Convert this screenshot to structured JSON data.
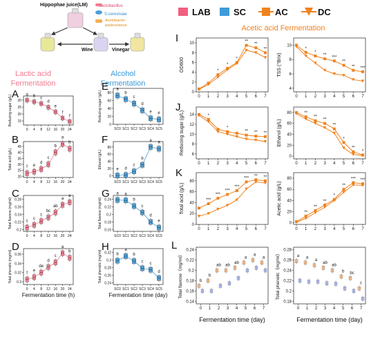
{
  "schematic": {
    "juice": "Hippophae juice(LM)",
    "lactobacillus": "Lactobacillus",
    "yeast": "S.cerevisiae",
    "acetobacter1": "Acetobacter",
    "acetobacter2": "pasteurianus",
    "wine": "Wine",
    "vinegar": "Vinegar"
  },
  "headings": {
    "lactic1": "Lactic acid",
    "lactic2": "Fermentation",
    "alcohol1": "Alcohol",
    "alcohol2": "Fermentation",
    "acetic": "Acetic acid Fermentation"
  },
  "legend": [
    {
      "label": "LAB",
      "color": "#f0607e",
      "shape": "square"
    },
    {
      "label": "SC",
      "color": "#3d9bd8",
      "shape": "square"
    },
    {
      "label": "AC",
      "color": "#f0821e",
      "shape": "square-line"
    },
    {
      "label": "DC",
      "color": "#f0821e",
      "shape": "triangle-line"
    }
  ],
  "colors": {
    "lab": "#f07b8f",
    "sc": "#4a9fd8",
    "ac": "#f0821e",
    "dc": "#f0821e",
    "lavender": "#8f9ef0",
    "orangeBox": "#f5a05a"
  },
  "xlabels": {
    "lactic": "Fermentation time (h)",
    "alcohol": "Fermentation time (day)",
    "acetic": "Fermentation time (day)",
    "acetic2": "Fermentation time (day)"
  },
  "chart_data": [
    {
      "panel": "A",
      "type": "box",
      "ylabel": "Reducing sugar (g/L)",
      "categories": [
        "0",
        "4",
        "8",
        "12",
        "16",
        "20",
        "24"
      ],
      "values": [
        30,
        28.8,
        27.5,
        24.8,
        21.5,
        17,
        14.5
      ],
      "letters": [
        "a",
        "b",
        "c",
        "d",
        "e",
        "f",
        "f"
      ],
      "yticks": [
        15,
        20,
        25,
        30
      ],
      "ylim": [
        12,
        33
      ]
    },
    {
      "panel": "B",
      "type": "box",
      "ylabel": "Total acid (g/L)",
      "categories": [
        "0",
        "4",
        "8",
        "12",
        "16",
        "20",
        "24"
      ],
      "values": [
        22.5,
        23.8,
        26,
        30,
        40,
        47,
        43
      ],
      "letters": [
        "f",
        "e",
        "d",
        "c",
        "b",
        "a",
        "b"
      ],
      "yticks": [
        20,
        25,
        30,
        35,
        40,
        45
      ],
      "ylim": [
        19,
        49
      ]
    },
    {
      "panel": "C",
      "type": "box",
      "ylabel": "Total flavone (mg/ml)",
      "categories": [
        "0",
        "4",
        "8",
        "12",
        "16",
        "20",
        "24"
      ],
      "values": [
        0.205,
        0.212,
        0.222,
        0.232,
        0.245,
        0.265,
        0.272
      ],
      "letters": [
        "c",
        "c",
        "c",
        "bc",
        "ab",
        "a",
        "a"
      ],
      "yticks": [
        0.2,
        0.22,
        0.24,
        0.26,
        0.28
      ],
      "ylim": [
        0.195,
        0.29
      ]
    },
    {
      "panel": "D",
      "type": "box",
      "ylabel": "Total phenolic (mg/ml)",
      "categories": [
        "0",
        "4",
        "8",
        "12",
        "16",
        "20",
        "24"
      ],
      "values": [
        0.305,
        0.31,
        0.32,
        0.332,
        0.342,
        0.362,
        0.352
      ],
      "letters": [
        "f",
        "e",
        "de",
        "d",
        "c",
        "a",
        "b"
      ],
      "yticks": [
        0.3,
        0.32,
        0.34,
        0.36
      ],
      "ylim": [
        0.294,
        0.372
      ]
    },
    {
      "panel": "E",
      "type": "box",
      "ylabel": "Reducing sugar (g/L)",
      "categories": [
        "SC0",
        "SC1",
        "SC2",
        "SC3",
        "SC4",
        "SC5"
      ],
      "values": [
        72,
        63,
        52,
        35,
        15,
        12
      ],
      "letters": [
        "a",
        "b",
        "c",
        "d",
        "e",
        "e"
      ],
      "yticks": [
        0,
        20,
        40,
        60,
        80
      ],
      "ylim": [
        0,
        90
      ]
    },
    {
      "panel": "F",
      "type": "box",
      "ylabel": "Ethanol (g/L)",
      "categories": [
        "SC0",
        "SC1",
        "SC2",
        "SC3",
        "SC4",
        "SC5"
      ],
      "values": [
        0.5,
        2,
        12,
        30,
        80,
        75
      ],
      "letters": [
        "e",
        "d",
        "c",
        "b",
        "a",
        "a"
      ],
      "yticks": [
        0,
        20,
        40,
        60,
        80
      ],
      "ylim": [
        -5,
        95
      ]
    },
    {
      "panel": "G",
      "type": "box",
      "ylabel": "Total flavone (mg/ml)",
      "categories": [
        "SC0",
        "SC1",
        "SC2",
        "SC3",
        "SC4",
        "SC5"
      ],
      "values": [
        0.238,
        0.237,
        0.222,
        0.205,
        0.18,
        0.165
      ],
      "letters": [
        "a",
        "a",
        "b",
        "c",
        "d",
        "e"
      ],
      "yticks": [
        0.16,
        0.18,
        0.2,
        0.22,
        0.24
      ],
      "ylim": [
        0.155,
        0.25
      ]
    },
    {
      "panel": "H",
      "type": "box",
      "ylabel": "Total phenolic (mg/ml)",
      "categories": [
        "SC0",
        "SC1",
        "SC2",
        "SC3",
        "SC4",
        "SC5"
      ],
      "values": [
        0.298,
        0.31,
        0.297,
        0.278,
        0.274,
        0.252
      ],
      "letters": [
        "b",
        "a",
        "b",
        "c",
        "c",
        "d"
      ],
      "yticks": [
        0.24,
        0.26,
        0.28,
        0.3,
        0.32
      ],
      "ylim": [
        0.235,
        0.33
      ]
    },
    {
      "panel": "I1",
      "type": "line",
      "ylabel": "OD600",
      "x": [
        0,
        1,
        2,
        3,
        4,
        5,
        6,
        7
      ],
      "series": [
        {
          "name": "AC",
          "values": [
            0.6,
            1.8,
            3.5,
            4.8,
            6,
            9.5,
            9,
            8
          ]
        },
        {
          "name": "DC",
          "values": [
            0.5,
            1.5,
            3,
            4.5,
            5.8,
            8.5,
            8,
            7
          ]
        }
      ],
      "sig": [
        "",
        "",
        "*",
        "*",
        "*",
        "**",
        "**",
        "**"
      ],
      "yticks": [
        0,
        2,
        4,
        6,
        8,
        10
      ],
      "ylim": [
        0,
        11
      ]
    },
    {
      "panel": "I2",
      "type": "line",
      "ylabel": "TSS (°Brix)",
      "x": [
        0,
        1,
        2,
        3,
        4,
        5,
        6,
        7
      ],
      "series": [
        {
          "name": "AC",
          "values": [
            10,
            9,
            8.5,
            8.1,
            7.8,
            7.2,
            6.5,
            6.3
          ]
        },
        {
          "name": "DC",
          "values": [
            9.8,
            8.5,
            7.5,
            6.5,
            6,
            5.8,
            5.2,
            5
          ]
        }
      ],
      "sig": [
        "",
        "*",
        "*",
        "**",
        "***",
        "**",
        "**",
        "***"
      ],
      "yticks": [
        4,
        6,
        8,
        10
      ],
      "ylim": [
        3.5,
        11
      ]
    },
    {
      "panel": "J1",
      "type": "line",
      "ylabel": "Reducing sugar (g/L)",
      "x": [
        0,
        1,
        2,
        3,
        4,
        5,
        6,
        7
      ],
      "series": [
        {
          "name": "AC",
          "values": [
            14,
            13,
            11,
            10.5,
            10.2,
            9.8,
            9.6,
            9.5
          ]
        },
        {
          "name": "DC",
          "values": [
            13.8,
            12.5,
            10.5,
            10,
            9.5,
            9,
            8.8,
            8.5
          ]
        }
      ],
      "sig": [
        "",
        "*",
        "",
        "*",
        "",
        "**",
        "**",
        "**"
      ],
      "yticks": [
        6,
        8,
        10,
        12,
        14
      ],
      "ylim": [
        5,
        15.5
      ]
    },
    {
      "panel": "J2",
      "type": "line",
      "ylabel": "Ethanol (g/L)",
      "x": [
        0,
        1,
        2,
        3,
        4,
        5,
        6,
        7
      ],
      "series": [
        {
          "name": "AC",
          "values": [
            80,
            72,
            65,
            60,
            50,
            25,
            8,
            2
          ]
        },
        {
          "name": "DC",
          "values": [
            78,
            68,
            60,
            52,
            42,
            15,
            3,
            1
          ]
        }
      ],
      "sig": [
        "",
        "**",
        "**",
        "**",
        "**",
        "*",
        "**",
        "*"
      ],
      "yticks": [
        0,
        20,
        40,
        60,
        80
      ],
      "ylim": [
        -5,
        90
      ]
    },
    {
      "panel": "K1",
      "type": "line",
      "ylabel": "Total acid (g/L)",
      "x": [
        0,
        1,
        2,
        3,
        4,
        5,
        6,
        7
      ],
      "series": [
        {
          "name": "AC",
          "values": [
            30,
            38,
            48,
            55,
            62,
            78,
            82,
            80
          ]
        },
        {
          "name": "DC",
          "values": [
            15,
            20,
            28,
            35,
            45,
            65,
            78,
            76
          ]
        }
      ],
      "sig": [
        "",
        "***",
        "***",
        "***",
        "***",
        "***",
        "**",
        "**"
      ],
      "yticks": [
        0,
        20,
        40,
        60,
        80
      ],
      "ylim": [
        0,
        95
      ]
    },
    {
      "panel": "K2",
      "type": "line",
      "ylabel": "Acetic acid (g/L)",
      "x": [
        0,
        1,
        2,
        3,
        4,
        5,
        6,
        7
      ],
      "series": [
        {
          "name": "AC",
          "values": [
            2,
            12,
            22,
            32,
            42,
            60,
            72,
            70
          ]
        },
        {
          "name": "DC",
          "values": [
            1,
            8,
            18,
            28,
            40,
            55,
            68,
            67
          ]
        }
      ],
      "sig": [
        "",
        "**",
        "**",
        "**",
        "*",
        "**",
        "***",
        "***"
      ],
      "yticks": [
        0,
        20,
        40,
        60,
        80
      ],
      "ylim": [
        -3,
        90
      ]
    },
    {
      "panel": "L1",
      "type": "box",
      "ylabel": "Total flavone（mg/ml）",
      "categories": [
        "0",
        "1",
        "2",
        "3",
        "4",
        "5",
        "6",
        "7"
      ],
      "series": [
        {
          "name": "AC",
          "values": [
            0.17,
            0.18,
            0.2,
            0.2,
            0.205,
            0.215,
            0.22,
            0.215
          ]
        },
        {
          "name": "DC",
          "values": [
            0.16,
            0.16,
            0.17,
            0.175,
            0.185,
            0.2,
            0.205,
            0.2
          ]
        }
      ],
      "letters": [
        "b",
        "b",
        "ab",
        "ab",
        "ab",
        "a",
        "a",
        "a"
      ],
      "yticks": [
        0.14,
        0.16,
        0.18,
        0.2,
        0.22,
        0.24
      ],
      "ylim": [
        0.135,
        0.245
      ]
    },
    {
      "panel": "L2",
      "type": "box",
      "ylabel": "Total phenolic（mg/ml）",
      "categories": [
        "0",
        "1",
        "2",
        "3",
        "4",
        "5",
        "6",
        "7"
      ],
      "series": [
        {
          "name": "AC",
          "values": [
            0.258,
            0.255,
            0.25,
            0.245,
            0.24,
            0.228,
            0.225,
            0.205
          ]
        },
        {
          "name": "DC",
          "values": [
            0.22,
            0.218,
            0.218,
            0.215,
            0.214,
            0.205,
            0.2,
            0.185
          ]
        }
      ],
      "letters": [
        "a",
        "a",
        "a",
        "ab",
        "ab",
        "b",
        "bc",
        "c"
      ],
      "yticks": [
        0.18,
        0.2,
        0.22,
        0.24,
        0.26,
        0.28
      ],
      "ylim": [
        0.175,
        0.285
      ]
    }
  ]
}
